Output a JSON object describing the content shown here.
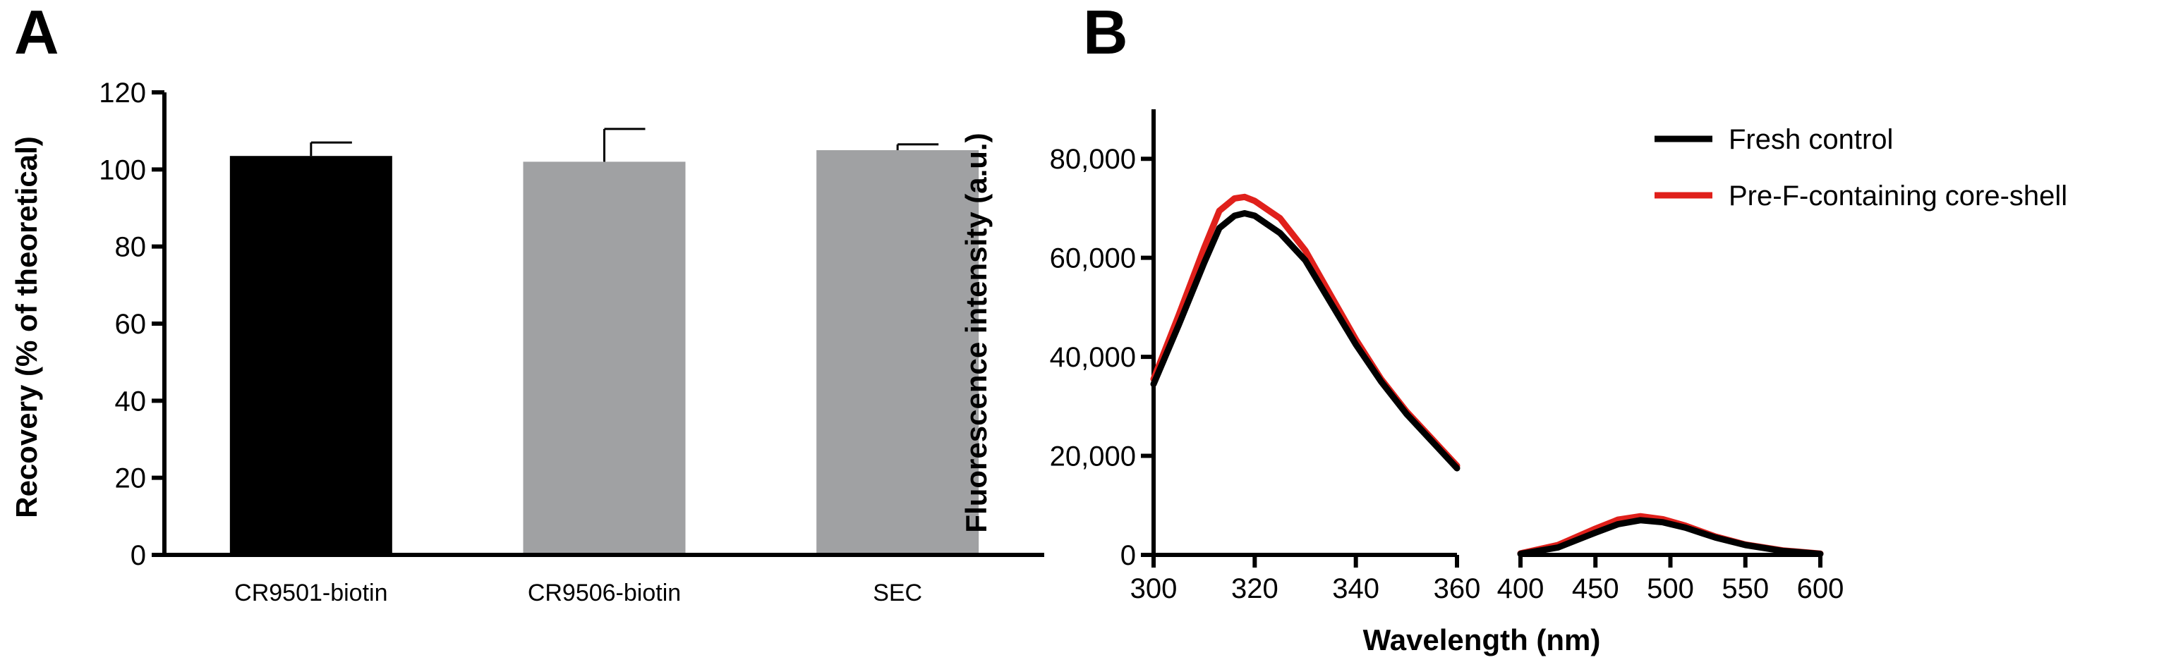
{
  "chart_data": [
    {
      "panel": "A",
      "type": "bar",
      "title": "",
      "xlabel": "",
      "ylabel": "Recovery (% of theoretical)",
      "ylim": [
        0,
        120
      ],
      "yticks": [
        0,
        20,
        40,
        60,
        80,
        100,
        120
      ],
      "categories": [
        "CR9501-biotin",
        "CR9506-biotin",
        "SEC"
      ],
      "values": [
        103.5,
        102,
        105
      ],
      "errors": [
        3.5,
        8.5,
        1.5
      ],
      "colors": [
        "#000000",
        "#a0a1a3",
        "#a0a1a3"
      ]
    },
    {
      "panel": "B",
      "type": "line",
      "title": "",
      "xlabel": "Wavelength (nm)",
      "ylabel": "Fluorescence intensity (a.u.)",
      "ylim": [
        0,
        90000
      ],
      "yticks": [
        0,
        20000,
        40000,
        60000,
        80000
      ],
      "ytick_labels": [
        "0",
        "20,000",
        "40,000",
        "60,000",
        "80,000"
      ],
      "x_segments": [
        {
          "range": [
            300,
            360
          ],
          "ticks": [
            300,
            320,
            340,
            360
          ]
        },
        {
          "range": [
            400,
            600
          ],
          "ticks": [
            400,
            450,
            500,
            550,
            600
          ]
        }
      ],
      "legend_position": "top-right",
      "series": [
        {
          "name": "Fresh control",
          "color": "#000000",
          "segments": [
            {
              "x": [
                300,
                305,
                310,
                313,
                316,
                318,
                320,
                325,
                330,
                335,
                340,
                345,
                350,
                355,
                360
              ],
              "y": [
                34500,
                46500,
                59000,
                66000,
                68500,
                69000,
                68500,
                65000,
                59500,
                51000,
                42500,
                35000,
                28500,
                23000,
                17500
              ]
            },
            {
              "x": [
                400,
                425,
                450,
                465,
                480,
                495,
                510,
                530,
                550,
                575,
                600
              ],
              "y": [
                200,
                1500,
                4500,
                6200,
                7000,
                6600,
                5500,
                3500,
                2000,
                800,
                200
              ]
            }
          ]
        },
        {
          "name": "Pre-F-containing core-shell",
          "color": "#e0201b",
          "segments": [
            {
              "x": [
                300,
                305,
                310,
                313,
                316,
                318,
                320,
                325,
                330,
                335,
                340,
                345,
                350,
                355,
                360
              ],
              "y": [
                35500,
                48500,
                62000,
                69500,
                72000,
                72300,
                71500,
                68000,
                61500,
                52500,
                43500,
                35500,
                29000,
                23500,
                18000
              ]
            },
            {
              "x": [
                400,
                425,
                450,
                465,
                480,
                495,
                510,
                530,
                550,
                575,
                600
              ],
              "y": [
                300,
                2000,
                5300,
                7100,
                7800,
                7200,
                5900,
                3700,
                2100,
                900,
                250
              ]
            }
          ]
        }
      ]
    }
  ],
  "labels": {
    "panel_a": "A",
    "panel_b": "B"
  }
}
